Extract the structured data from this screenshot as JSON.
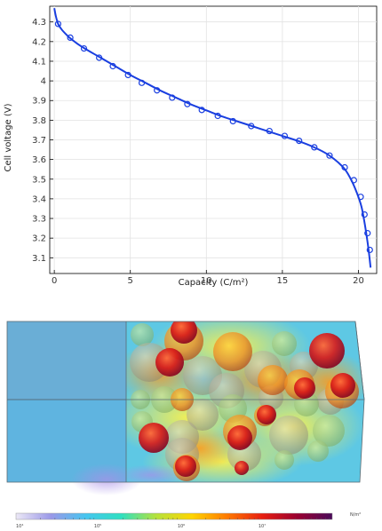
{
  "chart_data": [
    {
      "type": "line",
      "xlabel": "Capacity (C/m²)",
      "ylabel": "Cell voltage (V)",
      "xlim": [
        -0.3,
        21.2
      ],
      "ylim": [
        3.02,
        4.38
      ],
      "xticks": [
        0,
        5,
        10,
        15,
        20
      ],
      "yticks": [
        3.1,
        3.2,
        3.3,
        3.4,
        3.5,
        3.6,
        3.7,
        3.8,
        3.9,
        4.0,
        4.1,
        4.2,
        4.3
      ],
      "ytick_labels": [
        "3.1",
        "3.2",
        "3.3",
        "3.4",
        "3.5",
        "3.6",
        "3.7",
        "3.8",
        "3.9",
        "4",
        "4.1",
        "4.2",
        "4.3"
      ],
      "grid": true,
      "line_color": "#1a3fe0",
      "series": [
        {
          "x": [
            0.0,
            0.1,
            0.25,
            0.5,
            0.8,
            1.0,
            1.5,
            2.0,
            3.0,
            4.0,
            5.0,
            6.0,
            7.0,
            8.0,
            9.0,
            10.0,
            11.0,
            12.0,
            13.0,
            14.0,
            15.0,
            16.0,
            17.0,
            18.0,
            19.0,
            19.5,
            19.9,
            20.2,
            20.4,
            20.6,
            20.7,
            20.8
          ],
          "y": [
            4.37,
            4.33,
            4.29,
            4.26,
            4.235,
            4.22,
            4.19,
            4.165,
            4.12,
            4.075,
            4.03,
            3.99,
            3.95,
            3.915,
            3.88,
            3.85,
            3.82,
            3.795,
            3.77,
            3.745,
            3.72,
            3.695,
            3.665,
            3.625,
            3.56,
            3.5,
            3.43,
            3.36,
            3.28,
            3.18,
            3.12,
            3.05
          ]
        }
      ],
      "markers": {
        "x": [
          0.25,
          1.05,
          1.95,
          2.95,
          3.85,
          4.85,
          5.75,
          6.75,
          7.75,
          8.75,
          9.7,
          10.75,
          11.75,
          12.95,
          14.15,
          15.15,
          16.1,
          17.1,
          18.1,
          19.1,
          19.7,
          20.15,
          20.4,
          20.6,
          20.75
        ],
        "y": [
          4.29,
          4.22,
          4.165,
          4.118,
          4.075,
          4.03,
          3.99,
          3.952,
          3.915,
          3.882,
          3.852,
          3.822,
          3.795,
          3.77,
          3.745,
          3.72,
          3.695,
          3.662,
          3.62,
          3.56,
          3.495,
          3.41,
          3.32,
          3.225,
          3.14
        ]
      }
    },
    {
      "type": "heatmap",
      "colorbar": {
        "unit": "N/m²",
        "tick_labels": [
          "10⁴",
          "10⁵",
          "10⁶",
          "10⁷"
        ],
        "colors": [
          "#ece8f6",
          "#9a98e8",
          "#45c6f0",
          "#2ee0c0",
          "#b6e23a",
          "#ffd500",
          "#ff7a00",
          "#e81e10",
          "#9a0030",
          "#4a0a5a"
        ]
      }
    }
  ]
}
